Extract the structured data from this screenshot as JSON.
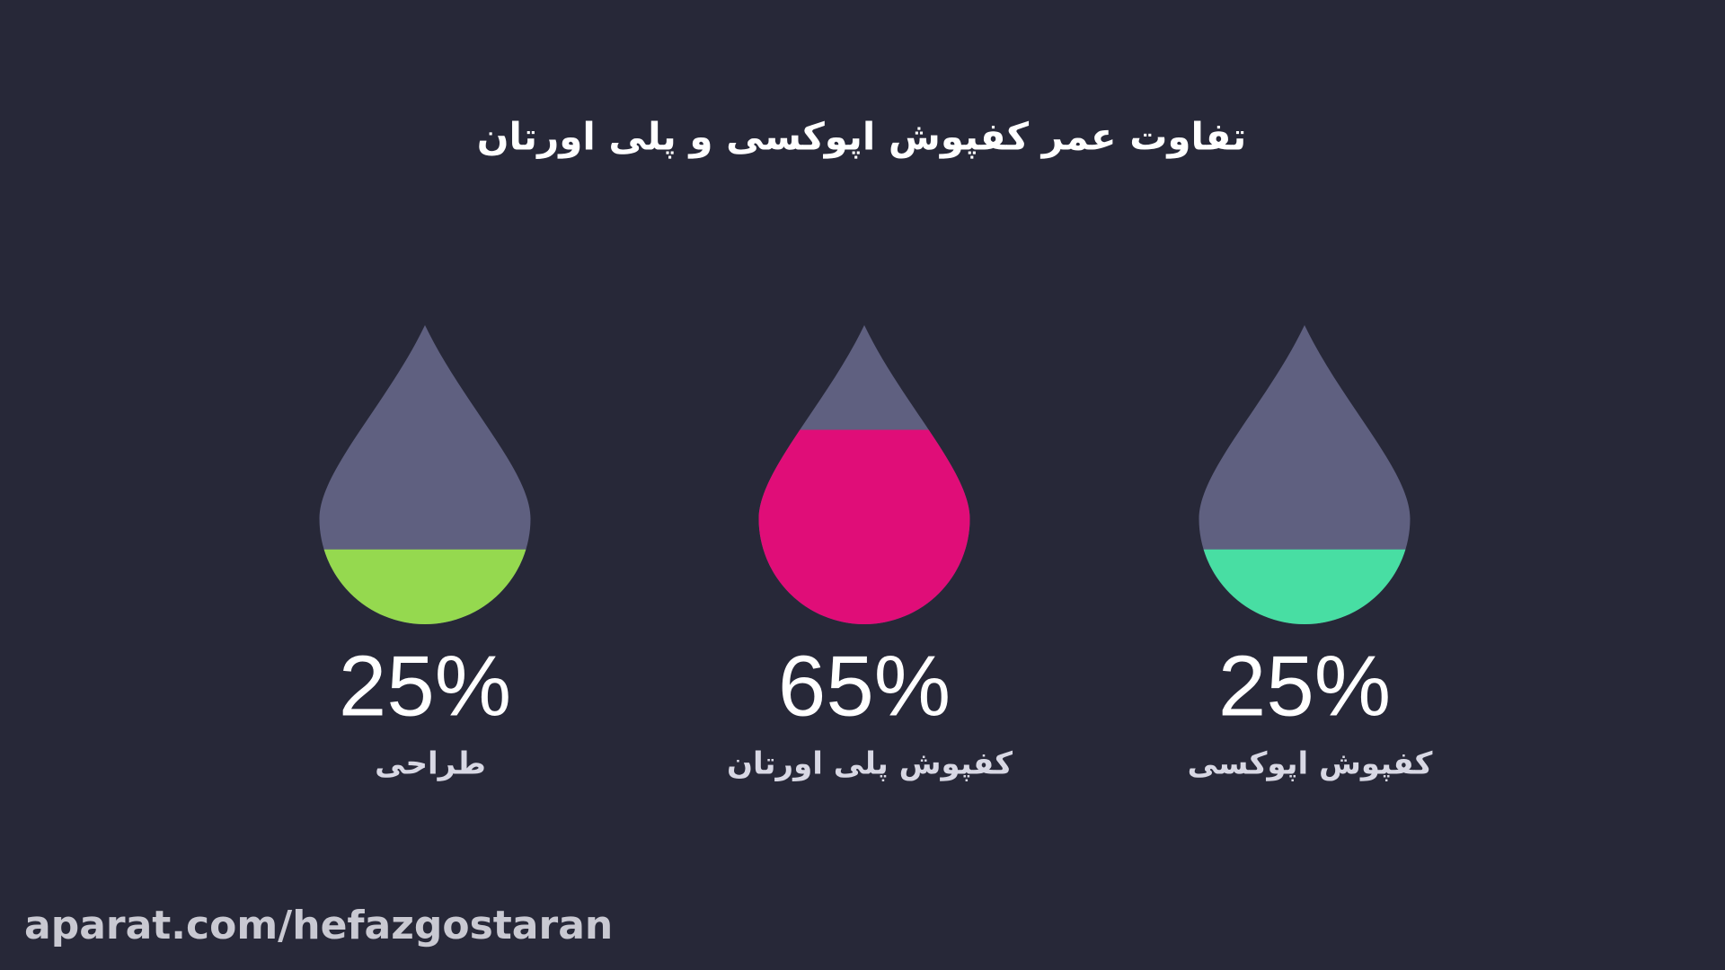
{
  "chart_data": {
    "type": "drop",
    "title": "تفاوت عمر کفپوش اپوکسی و پلی اورتان",
    "categories": [
      "طراحی",
      "کفپوش پلی اورتان",
      "کفپوش اپوکسی"
    ],
    "values": [
      25,
      65,
      25
    ],
    "value_labels": [
      "25%",
      "65%",
      "25%"
    ],
    "colors": [
      "#95d94f",
      "#e00d78",
      "#48dea3"
    ],
    "empty_color": "#5f6080",
    "ylim": [
      0,
      100
    ]
  },
  "watermark": "aparat.com/hefazgostaran"
}
